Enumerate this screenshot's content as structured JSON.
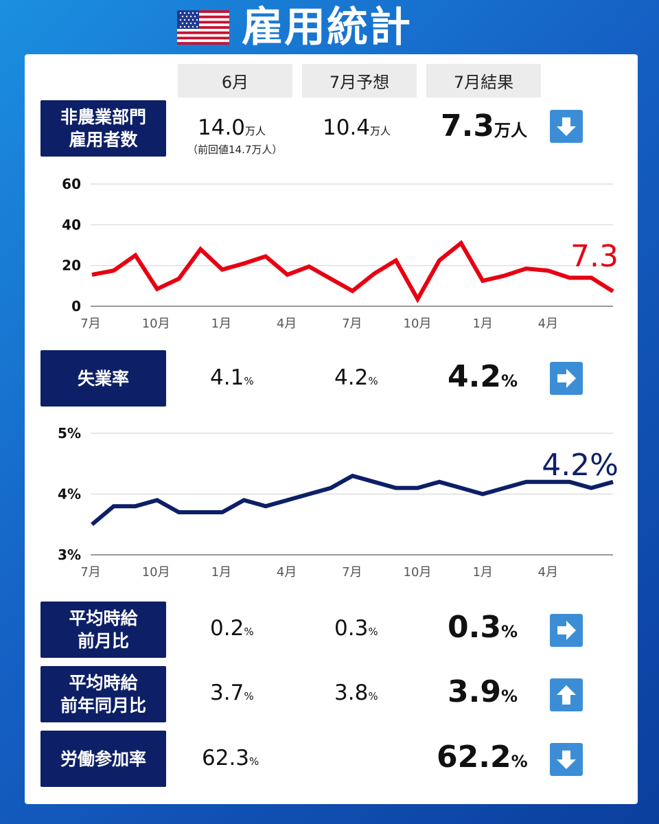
{
  "header": {
    "title": "雇用統計",
    "flag_icon": "us-flag-icon"
  },
  "columns": [
    "6月",
    "7月予想",
    "7月結果"
  ],
  "rows": {
    "nfp": {
      "label_lines": [
        "非農業部門",
        "雇用者数"
      ],
      "june": "14.0",
      "june_unit": "万人",
      "june_note": "（前回値14.7万人）",
      "forecast": "10.4",
      "forecast_unit": "万人",
      "result": "7.3",
      "result_unit": "万人",
      "trend_icon": "arrow-down-icon"
    },
    "unemployment": {
      "label_lines": [
        "失業率"
      ],
      "june": "4.1",
      "june_unit": "%",
      "forecast": "4.2",
      "forecast_unit": "%",
      "result": "4.2",
      "result_unit": "%",
      "trend_icon": "arrow-right-icon"
    },
    "wage_mom": {
      "label_lines": [
        "平均時給",
        "前月比"
      ],
      "june": "0.2",
      "june_unit": "%",
      "forecast": "0.3",
      "forecast_unit": "%",
      "result": "0.3",
      "result_unit": "%",
      "trend_icon": "arrow-right-icon"
    },
    "wage_yoy": {
      "label_lines": [
        "平均時給",
        "前年同月比"
      ],
      "june": "3.7",
      "june_unit": "%",
      "forecast": "3.8",
      "forecast_unit": "%",
      "result": "3.9",
      "result_unit": "%",
      "trend_icon": "arrow-up-icon"
    },
    "participation": {
      "label_lines": [
        "労働参加率"
      ],
      "june": "62.3",
      "june_unit": "%",
      "result": "62.2",
      "result_unit": "%",
      "trend_icon": "arrow-down-icon"
    }
  },
  "chart_data": [
    {
      "type": "line",
      "x_tick_labels": [
        "7月",
        "10月",
        "1月",
        "4月",
        "7月",
        "10月",
        "1月",
        "4月"
      ],
      "y_tick_labels": [
        "0",
        "20",
        "40",
        "60"
      ],
      "ylim": [
        0,
        60
      ],
      "grid": true,
      "series": [
        {
          "color": "#e60012",
          "values": [
            15.5,
            17.5,
            25,
            8.5,
            13.5,
            28,
            18,
            21,
            24.5,
            15.5,
            19.5,
            13.5,
            7.5,
            16,
            22.5,
            3.5,
            22.5,
            31,
            12.5,
            15,
            18.5,
            17.5,
            14,
            14,
            7.3
          ]
        }
      ],
      "end_label": "7.3"
    },
    {
      "type": "line",
      "x_tick_labels": [
        "7月",
        "10月",
        "1月",
        "4月",
        "7月",
        "10月",
        "1月",
        "4月"
      ],
      "y_tick_labels": [
        "3%",
        "4%",
        "5%"
      ],
      "ylim": [
        3,
        5
      ],
      "grid": true,
      "series": [
        {
          "color": "#0d1f66",
          "values": [
            3.5,
            3.8,
            3.8,
            3.9,
            3.7,
            3.7,
            3.7,
            3.9,
            3.8,
            3.9,
            4.0,
            4.1,
            4.3,
            4.2,
            4.1,
            4.1,
            4.2,
            4.1,
            4.0,
            4.1,
            4.2,
            4.2,
            4.2,
            4.1,
            4.2
          ]
        }
      ],
      "end_label": "4.2%"
    }
  ]
}
